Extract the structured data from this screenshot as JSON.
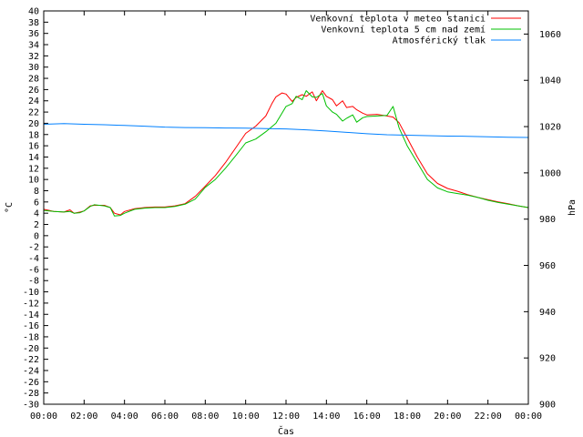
{
  "chart_data": {
    "type": "line",
    "xlabel": "Čas",
    "ylabel": "°C",
    "y2label": "hPa",
    "x_ticks": [
      "00:00",
      "02:00",
      "04:00",
      "06:00",
      "08:00",
      "10:00",
      "12:00",
      "14:00",
      "16:00",
      "18:00",
      "20:00",
      "22:00",
      "00:00"
    ],
    "xlim_hours": [
      0,
      24
    ],
    "ylim": [
      -30,
      40
    ],
    "y_ticks": [
      40,
      38,
      36,
      34,
      32,
      30,
      28,
      26,
      24,
      22,
      20,
      18,
      16,
      14,
      12,
      10,
      8,
      6,
      4,
      2,
      0,
      -2,
      -4,
      -6,
      -8,
      -10,
      -12,
      -14,
      -16,
      -18,
      -20,
      -22,
      -24,
      -26,
      -28,
      -30
    ],
    "y2lim": [
      900,
      1070
    ],
    "y2_ticks": [
      1060,
      1040,
      1020,
      1000,
      980,
      960,
      940,
      920,
      900
    ],
    "grid": false,
    "legend_position": "top-right",
    "series": [
      {
        "name": "Venkovní teplota v meteo stanici",
        "color": "#ff0000",
        "axis": "left",
        "x": [
          0,
          0.5,
          1,
          1.3,
          1.5,
          1.8,
          2,
          2.3,
          2.5,
          3,
          3.3,
          3.5,
          3.8,
          4,
          4.5,
          5,
          5.5,
          6,
          6.5,
          7,
          7.5,
          8,
          8.5,
          9,
          9.5,
          10,
          10.5,
          11,
          11.3,
          11.5,
          11.8,
          12,
          12.3,
          12.5,
          12.8,
          13,
          13.3,
          13.5,
          13.8,
          14,
          14.3,
          14.5,
          14.8,
          15,
          15.3,
          15.5,
          15.8,
          16,
          16.5,
          17,
          17.3,
          17.6,
          18,
          18.5,
          19,
          19.5,
          20,
          20.5,
          21,
          21.5,
          22,
          22.5,
          23,
          23.5,
          24
        ],
        "y": [
          4.7,
          4.3,
          4.2,
          4.6,
          4.0,
          4.2,
          4.4,
          5.3,
          5.4,
          5.4,
          5.0,
          4.0,
          3.7,
          4.3,
          4.8,
          5.0,
          5.1,
          5.1,
          5.3,
          5.7,
          7.0,
          8.8,
          10.7,
          13.0,
          15.6,
          18.2,
          19.5,
          21.3,
          23.5,
          24.7,
          25.4,
          25.2,
          23.9,
          24.6,
          25.1,
          24.8,
          25.6,
          24.0,
          25.8,
          24.8,
          24.2,
          23.1,
          24.0,
          22.8,
          23.0,
          22.4,
          21.8,
          21.5,
          21.6,
          21.3,
          21.1,
          20.1,
          17.4,
          14.0,
          11.0,
          9.3,
          8.4,
          7.9,
          7.3,
          6.8,
          6.4,
          6.0,
          5.7,
          5.3,
          5.0
        ]
      },
      {
        "name": "Venkovní teplota 5 cm nad zemí",
        "color": "#00c000",
        "axis": "left",
        "x": [
          0,
          0.5,
          1,
          1.3,
          1.5,
          1.8,
          2,
          2.3,
          2.5,
          3,
          3.3,
          3.5,
          3.8,
          4,
          4.5,
          5,
          5.5,
          6,
          6.5,
          7,
          7.5,
          8,
          8.5,
          9,
          9.5,
          10,
          10.5,
          11,
          11.5,
          12,
          12.3,
          12.5,
          12.8,
          13,
          13.3,
          13.5,
          13.8,
          14,
          14.3,
          14.5,
          14.8,
          15,
          15.3,
          15.5,
          15.8,
          16,
          16.5,
          17,
          17.3,
          17.6,
          18,
          18.5,
          19,
          19.5,
          20,
          20.5,
          21,
          21.5,
          22,
          22.5,
          23,
          23.5,
          24
        ],
        "y": [
          4.5,
          4.3,
          4.2,
          4.3,
          4.0,
          4.1,
          4.4,
          5.2,
          5.5,
          5.3,
          5.0,
          3.5,
          3.6,
          4.0,
          4.7,
          4.9,
          5.0,
          5.0,
          5.2,
          5.6,
          6.5,
          8.6,
          10.0,
          12.0,
          14.2,
          16.5,
          17.2,
          18.5,
          20.0,
          23.0,
          23.5,
          24.8,
          24.2,
          25.8,
          24.7,
          24.6,
          25.3,
          23.1,
          22.0,
          21.6,
          20.4,
          20.9,
          21.5,
          20.2,
          21.0,
          21.2,
          21.3,
          21.4,
          23.0,
          19.2,
          16.0,
          13.0,
          10.0,
          8.5,
          7.8,
          7.5,
          7.2,
          6.8,
          6.3,
          5.9,
          5.6,
          5.3,
          5.0
        ]
      },
      {
        "name": "Atmosférický tlak",
        "color": "#0080ff",
        "axis": "right",
        "x": [
          0,
          1,
          2,
          3,
          4,
          5,
          6,
          7,
          8,
          9,
          10,
          11,
          12,
          13,
          14,
          15,
          16,
          17,
          18,
          19,
          20,
          21,
          22,
          23,
          24
        ],
        "y": [
          1021.0,
          1021.3,
          1021.0,
          1020.8,
          1020.5,
          1020.2,
          1019.8,
          1019.6,
          1019.5,
          1019.4,
          1019.3,
          1019.1,
          1019.0,
          1018.6,
          1018.1,
          1017.5,
          1016.9,
          1016.5,
          1016.3,
          1016.1,
          1015.9,
          1015.8,
          1015.6,
          1015.4,
          1015.3
        ]
      }
    ]
  }
}
